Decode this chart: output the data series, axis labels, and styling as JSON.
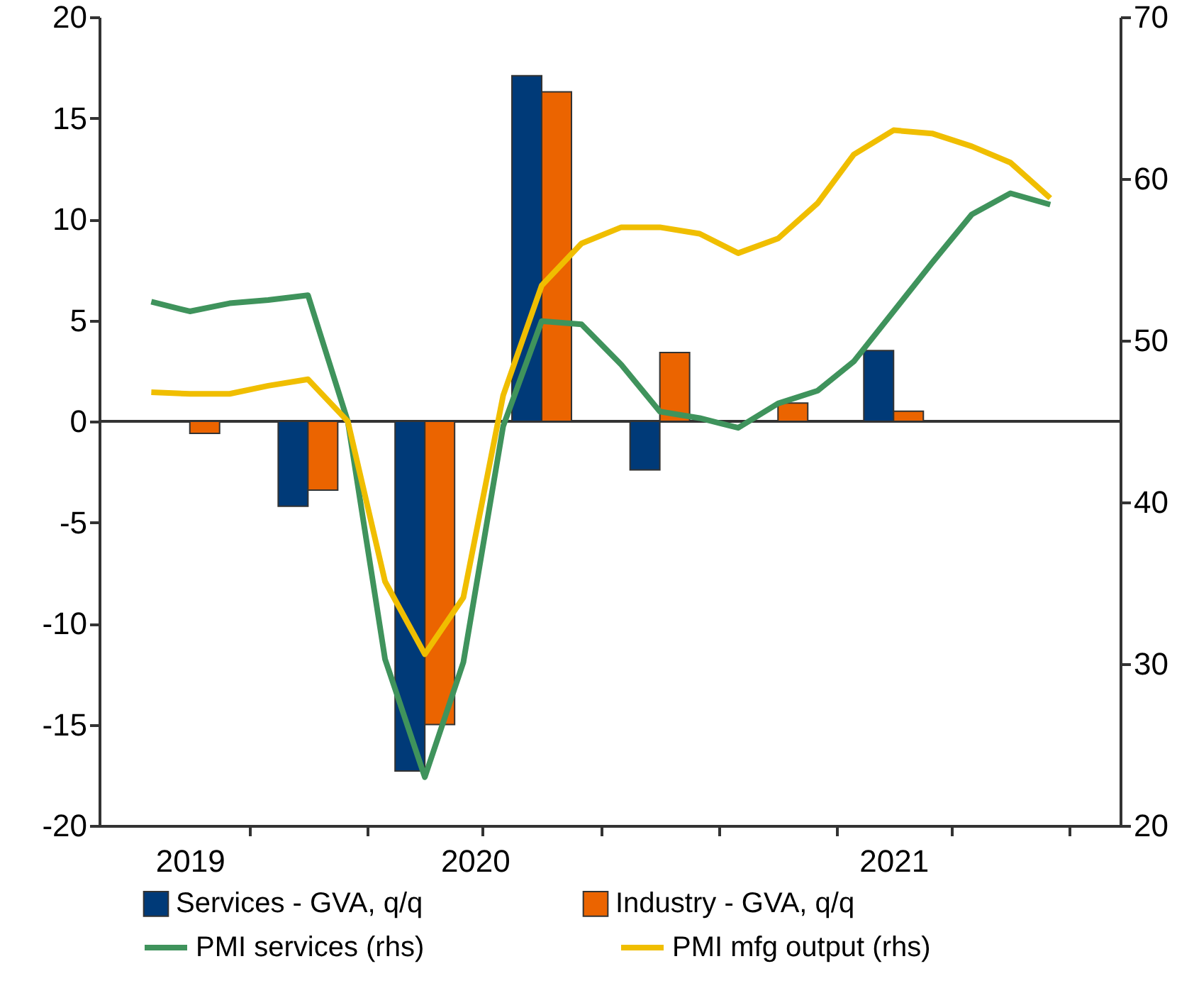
{
  "chart_data": {
    "type": "bar",
    "xlim": [
      "2019-07-28",
      "2021-09-19"
    ],
    "xticks": [
      {
        "value": "2019-10-01",
        "label": "2019"
      },
      {
        "value": "2020-05-10",
        "label": "2020"
      },
      {
        "value": "2021-04-01",
        "label": "2021"
      },
      {
        "value": "2019-11-16",
        "label": null
      },
      {
        "value": "2020-02-16",
        "label": null
      },
      {
        "value": "2020-05-16",
        "label": null
      },
      {
        "value": "2020-08-16",
        "label": null
      },
      {
        "value": "2020-11-16",
        "label": null
      },
      {
        "value": "2021-02-16",
        "label": null
      },
      {
        "value": "2021-05-16",
        "label": null
      },
      {
        "value": "2021-08-16",
        "label": null
      }
    ],
    "ylim": [
      -20,
      20
    ],
    "yticks": [
      -20,
      -15,
      -10,
      -5,
      0,
      5,
      10,
      15,
      20
    ],
    "y2lim": [
      20,
      70
    ],
    "y2ticks": [
      20,
      30,
      40,
      50,
      60,
      70
    ],
    "grid": false,
    "legend": "bottom",
    "ref_lines": [
      {
        "axis": "y",
        "value": 0,
        "color": "#333333"
      }
    ],
    "series": [
      {
        "name": "Services - GVA, q/q",
        "color": "#003a78",
        "x": [
          "2020-01",
          "2020-04",
          "2020-07",
          "2020-10",
          "2021-04"
        ],
        "values": [
          -4.2,
          -17.3,
          17.1,
          -2.4,
          3.5
        ]
      },
      {
        "name": "Industry - GVA, q/q",
        "color": "#eb6400",
        "x": [
          "2019-10",
          "2020-01",
          "2020-04",
          "2020-07",
          "2020-10",
          "2021-01",
          "2021-04"
        ],
        "values": [
          -0.6,
          -3.4,
          -15.0,
          16.3,
          3.4,
          0.9,
          0.5
        ]
      },
      {
        "name": "PMI services (rhs)",
        "type": "line",
        "axis": "y2",
        "color": "#3f935c",
        "x": [
          "2019-09",
          "2019-10",
          "2019-11",
          "2019-12",
          "2020-01",
          "2020-02",
          "2020-03",
          "2020-04",
          "2020-05",
          "2020-06",
          "2020-07",
          "2020-08",
          "2020-09",
          "2020-10",
          "2020-11",
          "2020-12",
          "2021-01",
          "2021-02",
          "2021-03",
          "2021-04",
          "2021-05",
          "2021-06",
          "2021-07",
          "2021-08"
        ],
        "values": [
          52.4,
          51.8,
          52.3,
          52.5,
          52.8,
          45.0,
          30.3,
          23.0,
          30.1,
          44.7,
          51.2,
          51.0,
          48.5,
          45.6,
          45.2,
          44.6,
          46.1,
          46.9,
          48.7,
          51.8,
          54.8,
          57.8,
          59.1,
          58.4
        ]
      },
      {
        "name": "PMI mfg output (rhs)",
        "type": "line",
        "axis": "y2",
        "color": "#f0be00",
        "x": [
          "2019-09",
          "2019-10",
          "2019-11",
          "2019-12",
          "2020-01",
          "2020-02",
          "2020-03",
          "2020-04",
          "2020-05",
          "2020-06",
          "2020-07",
          "2020-08",
          "2020-09",
          "2020-10",
          "2020-11",
          "2020-12",
          "2021-01",
          "2021-02",
          "2021-03",
          "2021-04",
          "2021-05",
          "2021-06",
          "2021-07",
          "2021-08"
        ],
        "values": [
          46.8,
          46.7,
          46.7,
          47.2,
          47.6,
          45.0,
          35.1,
          30.6,
          34.1,
          46.6,
          53.4,
          56.0,
          57.0,
          57.0,
          56.6,
          55.4,
          56.3,
          58.5,
          61.5,
          63.0,
          62.8,
          62.0,
          61.0,
          58.8
        ]
      }
    ]
  }
}
